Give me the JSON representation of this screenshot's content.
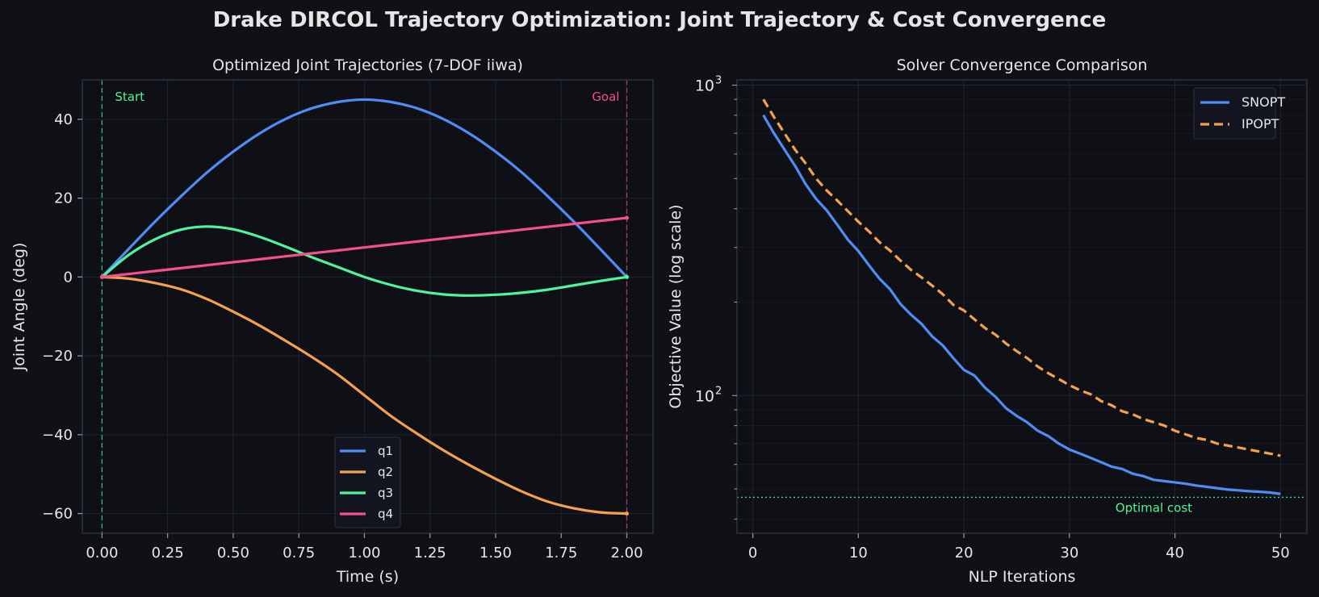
{
  "suptitle": "Drake DIRCOL Trajectory Optimization: Joint Trajectory & Cost Convergence",
  "colors": {
    "background": "#101117",
    "axes_face": "#0f1016",
    "grid": "#1f2230",
    "spine": "#2d3040",
    "text": "#e6e6e6",
    "q1": "#4f8df5",
    "q2": "#f5a04f",
    "q3": "#4ff59a",
    "q4": "#f54f8d",
    "start": "#4ff59a",
    "goal": "#f54f8d",
    "optimal": "#4ff59a"
  },
  "chart_data": [
    {
      "type": "line",
      "title": "Optimized Joint Trajectories (7-DOF iiwa)",
      "xlabel": "Time (s)",
      "ylabel": "Joint Angle (deg)",
      "xlim": [
        -0.075,
        2.1
      ],
      "ylim": [
        -65,
        50
      ],
      "xticks": [
        0,
        0.25,
        0.5,
        0.75,
        1.0,
        1.25,
        1.5,
        1.75,
        2.0
      ],
      "xtick_labels": [
        "0.00",
        "0.25",
        "0.50",
        "0.75",
        "1.00",
        "1.25",
        "1.50",
        "1.75",
        "2.00"
      ],
      "yticks": [
        -60,
        -40,
        -20,
        0,
        20,
        40
      ],
      "ytick_labels": [
        "−60",
        "−40",
        "−20",
        "0",
        "20",
        "40"
      ],
      "grid": true,
      "legend_position": "lower-center",
      "x": [
        0,
        0.1,
        0.2,
        0.3,
        0.4,
        0.5,
        0.6,
        0.7,
        0.8,
        0.9,
        1.0,
        1.1,
        1.2,
        1.3,
        1.4,
        1.5,
        1.6,
        1.7,
        1.8,
        1.9,
        2.0
      ],
      "series": [
        {
          "name": "q1",
          "values": [
            0,
            7.0,
            13.9,
            20.4,
            26.5,
            31.8,
            36.4,
            40.1,
            42.8,
            44.4,
            45.0,
            44.4,
            42.8,
            40.1,
            36.4,
            31.8,
            26.5,
            20.4,
            13.9,
            7.0,
            0
          ]
        },
        {
          "name": "q2",
          "values": [
            0,
            -0.4,
            -1.5,
            -3.1,
            -5.6,
            -8.8,
            -12.3,
            -16.2,
            -20.3,
            -24.8,
            -30.0,
            -35.2,
            -39.7,
            -43.9,
            -47.7,
            -51.2,
            -54.4,
            -57.0,
            -58.7,
            -59.7,
            -60.0
          ]
        },
        {
          "name": "q3",
          "values": [
            0,
            5.5,
            9.5,
            12.0,
            12.8,
            12.1,
            10.2,
            7.7,
            5.0,
            2.5,
            0,
            -2.0,
            -3.5,
            -4.4,
            -4.7,
            -4.5,
            -4.0,
            -3.2,
            -2.1,
            -1.0,
            0
          ]
        },
        {
          "name": "q4",
          "values": [
            0,
            0.75,
            1.5,
            2.25,
            3.0,
            3.75,
            4.5,
            5.25,
            6.0,
            6.75,
            7.5,
            8.25,
            9.0,
            9.75,
            10.5,
            11.25,
            12.0,
            12.75,
            13.5,
            14.25,
            15.0
          ]
        }
      ],
      "annotations": [
        {
          "text": "Start",
          "x": 0.0
        },
        {
          "text": "Goal",
          "x": 2.0
        }
      ]
    },
    {
      "type": "line",
      "title": "Solver Convergence Comparison",
      "xlabel": "NLP Iterations",
      "ylabel": "Objective Value (log scale)",
      "yscale": "log",
      "xlim": [
        -1.5,
        52.5
      ],
      "ylim": [
        36,
        1040
      ],
      "xticks": [
        0,
        10,
        20,
        30,
        40,
        50
      ],
      "xtick_labels": [
        "0",
        "10",
        "20",
        "30",
        "40",
        "50"
      ],
      "grid": true,
      "legend_position": "top-right",
      "x": [
        1,
        2,
        3,
        4,
        5,
        6,
        7,
        8,
        9,
        10,
        11,
        12,
        13,
        14,
        15,
        16,
        17,
        18,
        19,
        20,
        21,
        22,
        23,
        24,
        25,
        26,
        27,
        28,
        29,
        30,
        31,
        32,
        33,
        34,
        35,
        36,
        37,
        38,
        39,
        40,
        41,
        42,
        43,
        44,
        45,
        46,
        47,
        48,
        49,
        50
      ],
      "series": [
        {
          "name": "SNOPT",
          "values": [
            800,
            700,
            620,
            550,
            480,
            430,
            395,
            355,
            318,
            292,
            263,
            238,
            220,
            197,
            182,
            170,
            155,
            145,
            132,
            121,
            116,
            106,
            99,
            91,
            86,
            82,
            77,
            74,
            70,
            67,
            65,
            63,
            61,
            59,
            58,
            56,
            55,
            53.5,
            53,
            52.5,
            52,
            51.3,
            50.8,
            50.3,
            49.8,
            49.5,
            49.2,
            49,
            48.7,
            48.2
          ]
        },
        {
          "name": "IPOPT",
          "values": [
            900,
            790,
            700,
            620,
            560,
            500,
            458,
            425,
            393,
            363,
            338,
            312,
            293,
            272,
            254,
            240,
            226,
            212,
            196,
            188,
            176,
            165,
            157,
            147,
            139,
            132,
            124,
            118,
            113,
            108,
            104,
            101,
            96,
            93,
            89,
            87,
            84,
            82,
            80,
            77,
            75,
            73,
            72,
            70,
            69,
            68,
            67,
            66,
            65,
            64
          ]
        }
      ],
      "reference_line": {
        "label": "Optimal cost",
        "value": 47
      }
    }
  ]
}
